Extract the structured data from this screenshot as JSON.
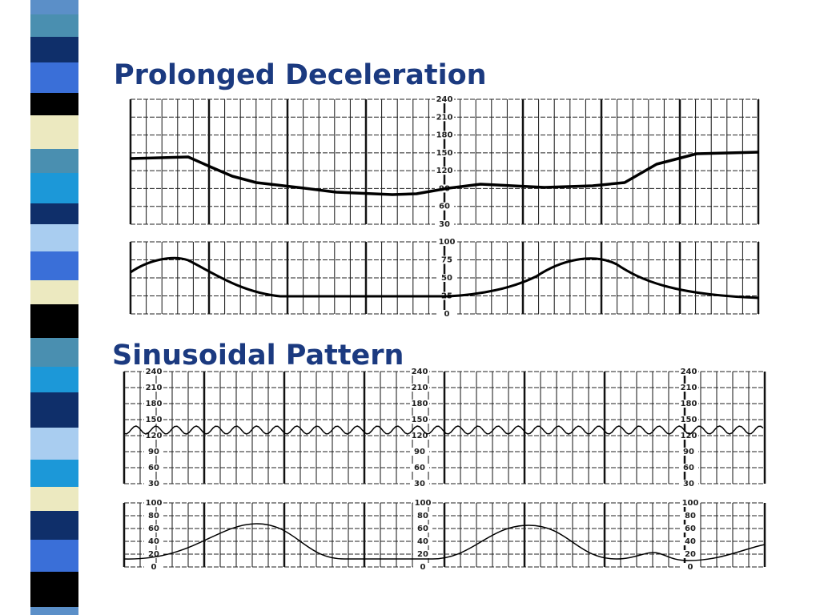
{
  "slide": {
    "headings": [
      "Prolonged Deceleration",
      "Sinusoidal Pattern"
    ]
  },
  "tracings": {
    "heart_rate_scale": [
      240,
      210,
      180,
      150,
      120,
      90,
      60,
      30
    ],
    "contraction_scale": [
      100,
      75,
      50,
      25,
      0
    ],
    "contraction_scale_alt": [
      100,
      80,
      60,
      40,
      20,
      0
    ]
  }
}
